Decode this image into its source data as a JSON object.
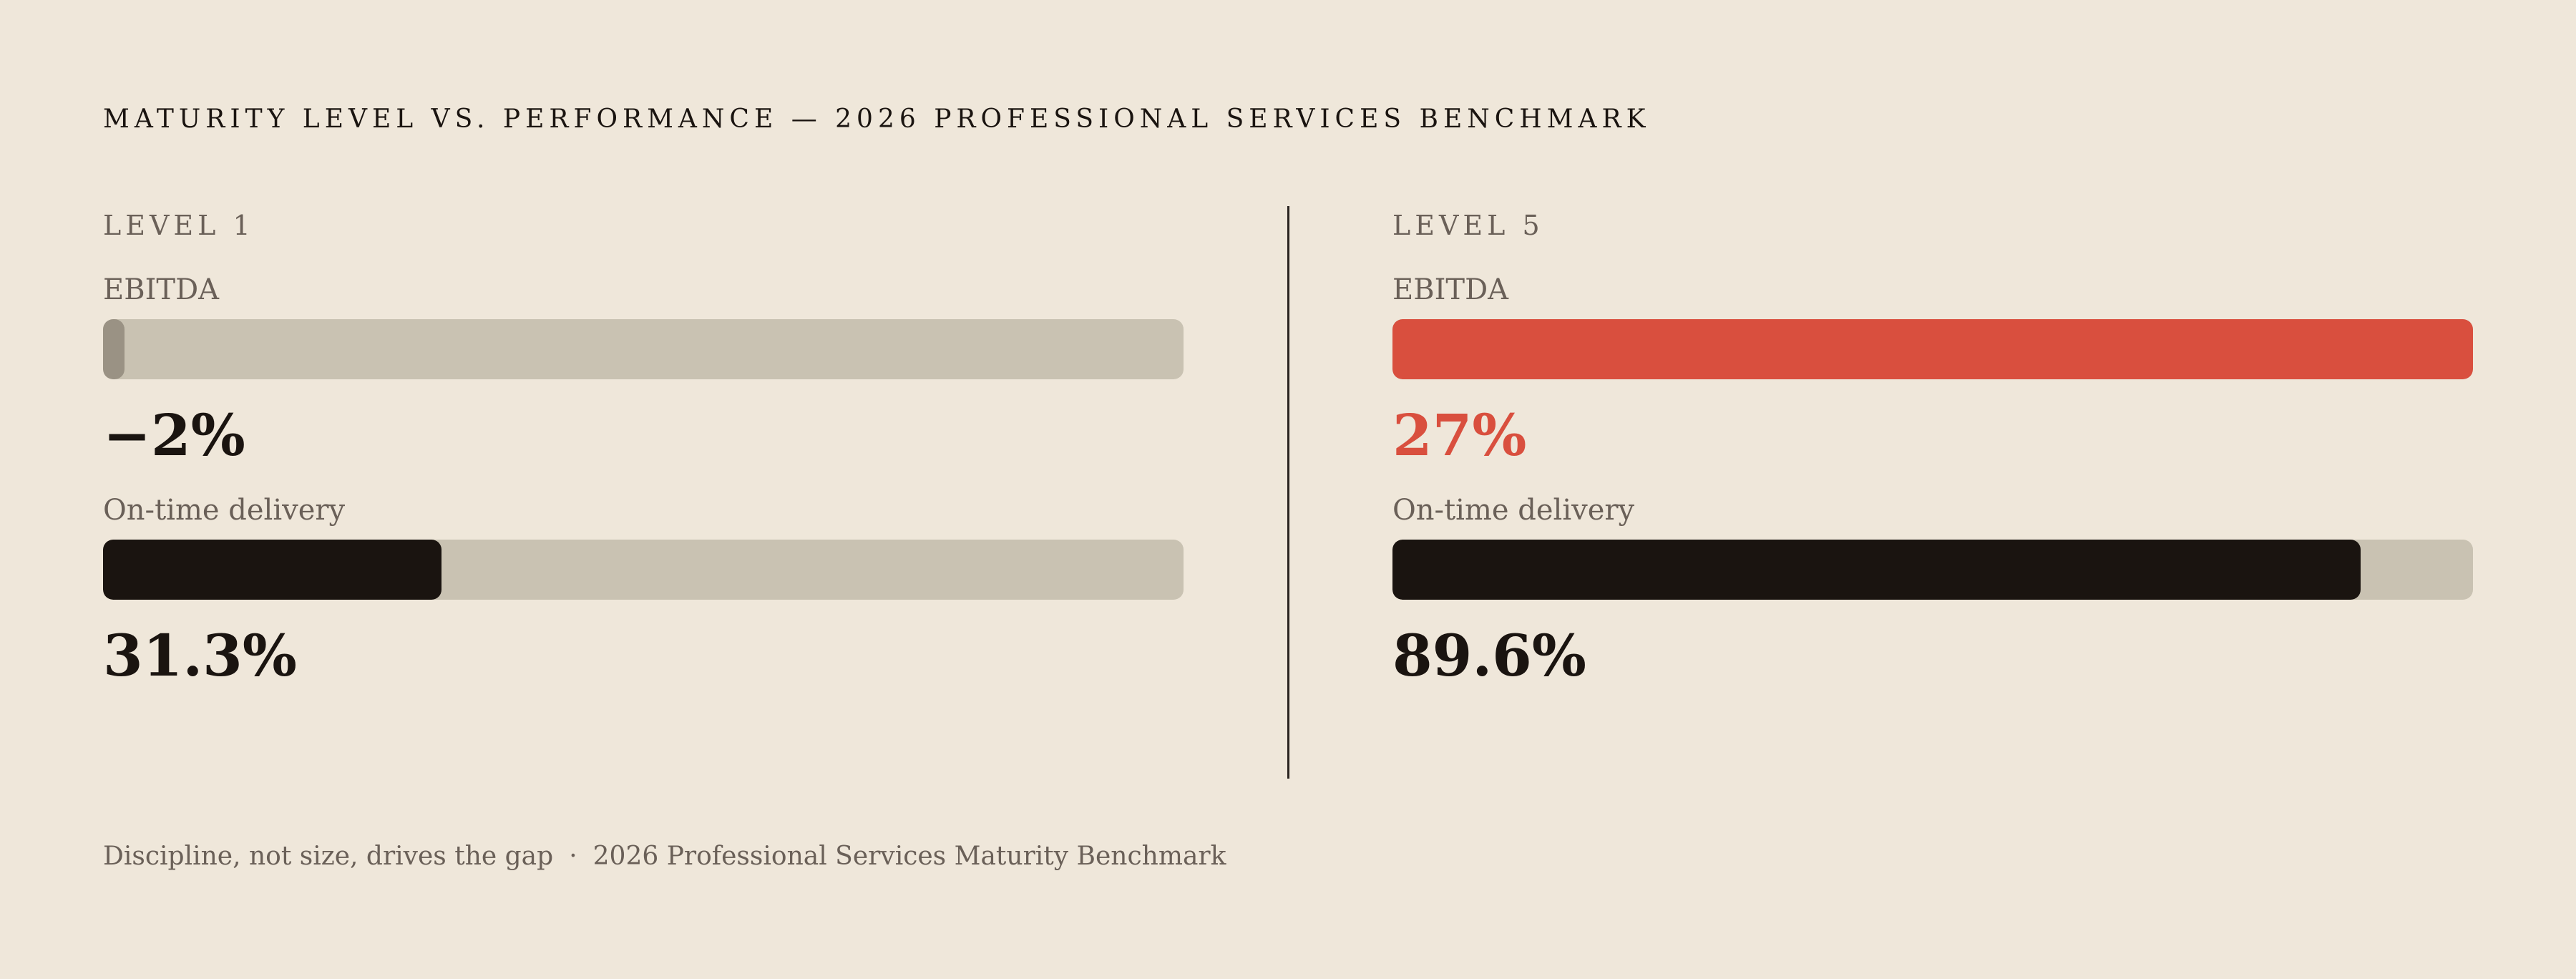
{
  "title": "MATURITY LEVEL VS. PERFORMANCE — 2026 PROFESSIONAL SERVICES BENCHMARK",
  "colors": {
    "background": "#efe7da",
    "track": "#c9c2b2",
    "dark_fill": "#1a1410",
    "accent": "#d94f3e",
    "negative_fill": "#9a9284",
    "muted_text": "#6a6058"
  },
  "chart_data": {
    "type": "bar",
    "title": "MATURITY LEVEL VS. PERFORMANCE — 2026 PROFESSIONAL SERVICES BENCHMARK",
    "panels": [
      {
        "label": "LEVEL 1",
        "metrics": [
          {
            "name": "EBITDA",
            "value": -2,
            "display": "−2%",
            "fill": 0.02,
            "accent": false,
            "negative": true
          },
          {
            "name": "On-time delivery",
            "value": 31.3,
            "display": "31.3%",
            "fill": 0.313,
            "accent": false,
            "negative": false
          }
        ]
      },
      {
        "label": "LEVEL 5",
        "metrics": [
          {
            "name": "EBITDA",
            "value": 27,
            "display": "27%",
            "fill": 1.0,
            "accent": true,
            "negative": false
          },
          {
            "name": "On-time delivery",
            "value": 89.6,
            "display": "89.6%",
            "fill": 0.896,
            "accent": false,
            "negative": false
          }
        ]
      }
    ]
  },
  "footer": {
    "note": "Discipline, not size, drives the gap",
    "separator": "·",
    "source": "2026 Professional Services Maturity Benchmark"
  }
}
